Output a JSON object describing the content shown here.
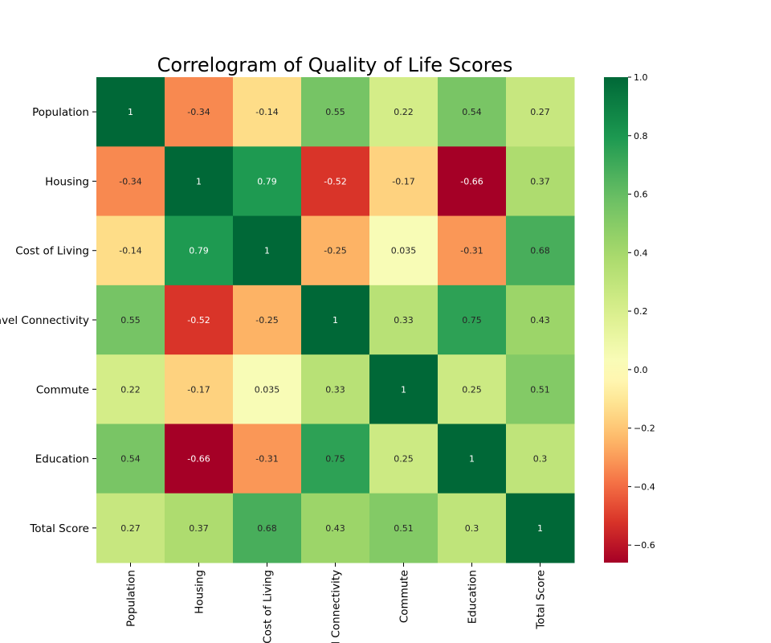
{
  "chart_data": {
    "type": "heatmap",
    "title": "Correlogram of Quality of Life Scores",
    "row_labels": [
      "Population",
      "Housing",
      "Cost of Living",
      "Travel Connectivity",
      "Commute",
      "Education",
      "Total Score"
    ],
    "col_labels": [
      "Population",
      "Housing",
      "Cost of Living",
      "Travel Connectivity",
      "Commute",
      "Education",
      "Total Score"
    ],
    "values": [
      [
        1,
        -0.34,
        -0.14,
        0.55,
        0.22,
        0.54,
        0.27
      ],
      [
        -0.34,
        1,
        0.79,
        -0.52,
        -0.17,
        -0.66,
        0.37
      ],
      [
        -0.14,
        0.79,
        1,
        -0.25,
        0.035,
        -0.31,
        0.68
      ],
      [
        0.55,
        -0.52,
        -0.25,
        1,
        0.33,
        0.75,
        0.43
      ],
      [
        0.22,
        -0.17,
        0.035,
        0.33,
        1,
        0.25,
        0.51
      ],
      [
        0.54,
        -0.66,
        -0.31,
        0.75,
        0.25,
        1,
        0.3
      ],
      [
        0.27,
        0.37,
        0.68,
        0.43,
        0.51,
        0.3,
        1
      ]
    ],
    "cell_labels": [
      [
        "1",
        "-0.34",
        "-0.14",
        "0.55",
        "0.22",
        "0.54",
        "0.27"
      ],
      [
        "-0.34",
        "1",
        "0.79",
        "-0.52",
        "-0.17",
        "-0.66",
        "0.37"
      ],
      [
        "-0.14",
        "0.79",
        "1",
        "-0.25",
        "0.035",
        "-0.31",
        "0.68"
      ],
      [
        "0.55",
        "-0.52",
        "-0.25",
        "1",
        "0.33",
        "0.75",
        "0.43"
      ],
      [
        "0.22",
        "-0.17",
        "0.035",
        "0.33",
        "1",
        "0.25",
        "0.51"
      ],
      [
        "0.54",
        "-0.66",
        "-0.31",
        "0.75",
        "0.25",
        "1",
        "0.3"
      ],
      [
        "0.27",
        "0.37",
        "0.68",
        "0.43",
        "0.51",
        "0.3",
        "1"
      ]
    ],
    "colormap": "RdYlGn",
    "color_range": [
      -0.66,
      1
    ],
    "colorbar": {
      "ticks": [
        -0.6,
        -0.4,
        -0.2,
        0.0,
        0.2,
        0.4,
        0.6,
        0.8,
        1.0
      ],
      "tick_labels": [
        "−0.6",
        "−0.4",
        "−0.2",
        "0.0",
        "0.2",
        "0.4",
        "0.6",
        "0.8",
        "1.0"
      ],
      "placement": "right"
    }
  }
}
